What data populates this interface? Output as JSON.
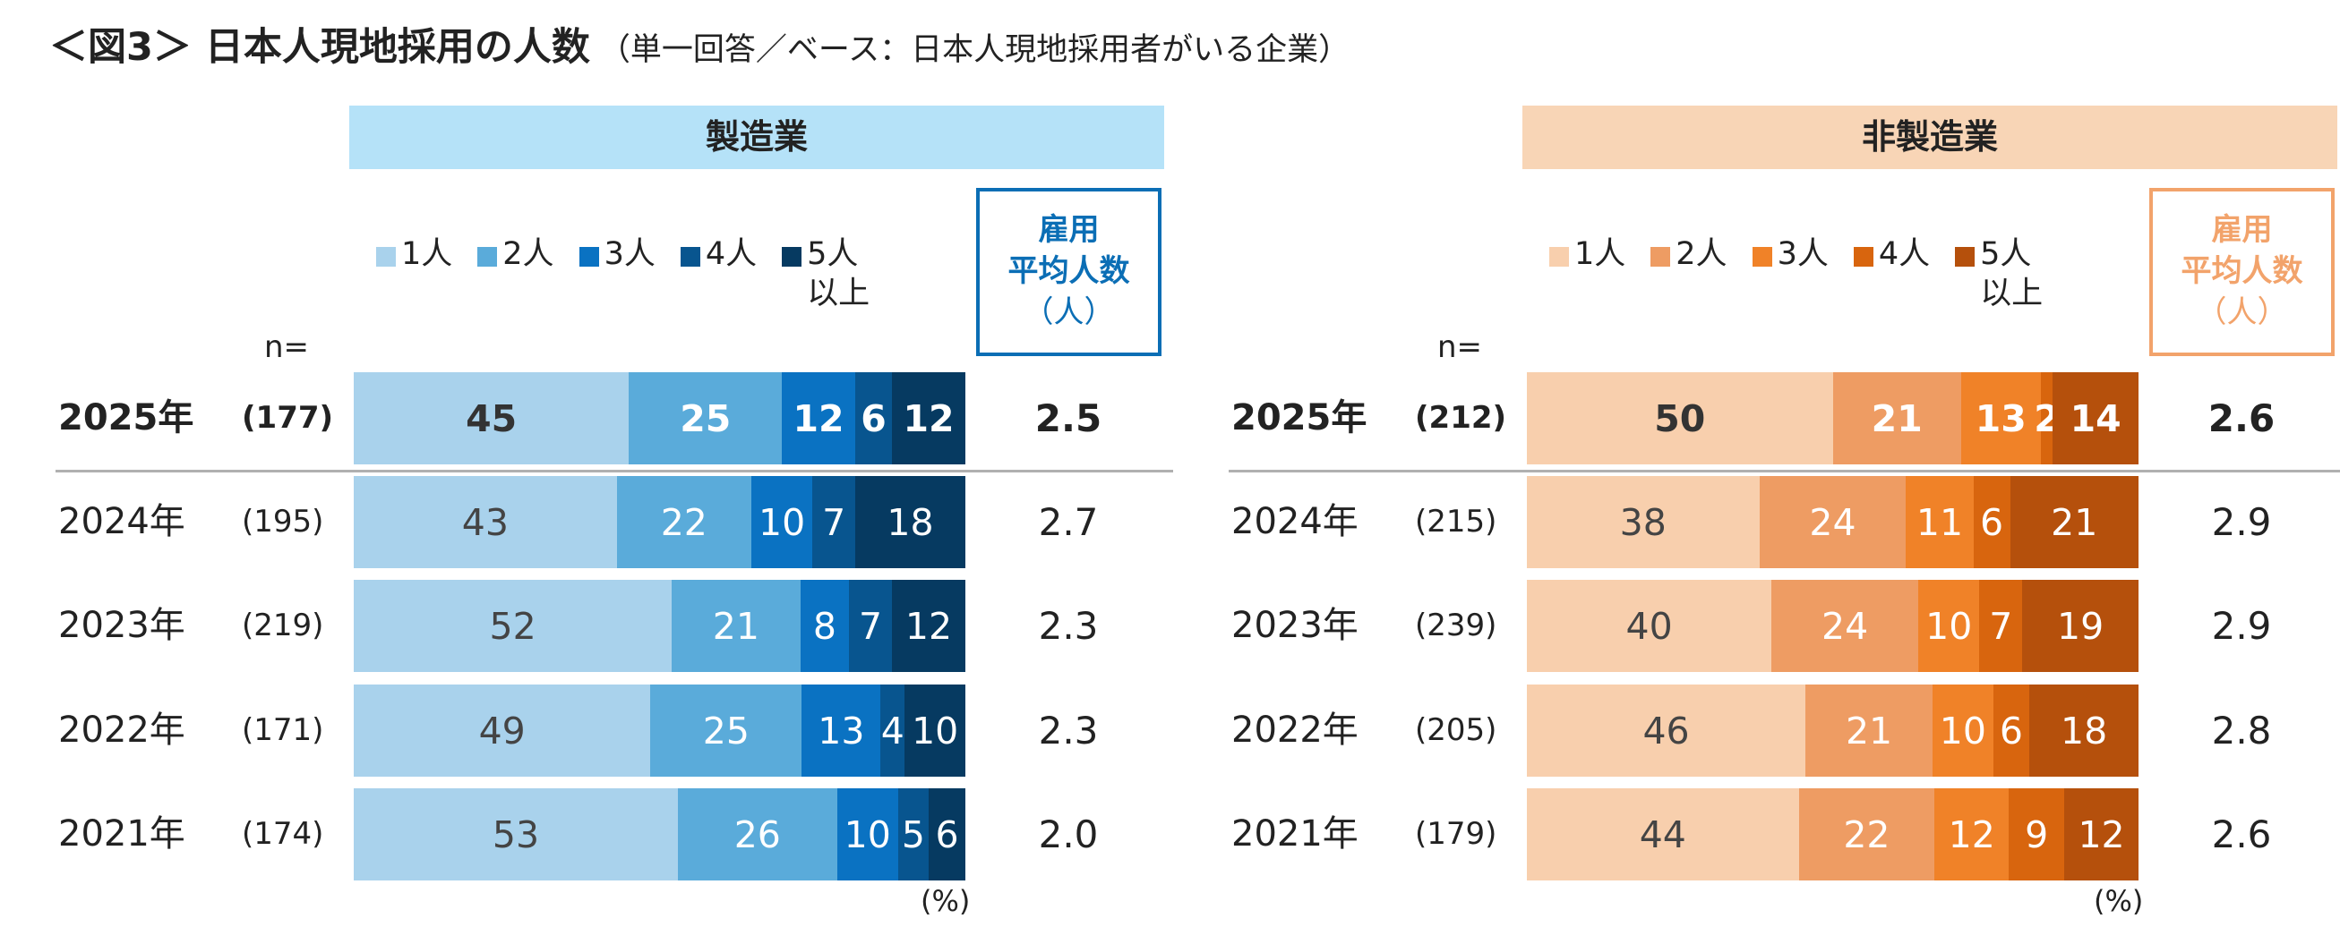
{
  "title": {
    "main": "＜図3＞ 日本人現地採用の人数",
    "sub": "（単一回答／ベース：日本人現地採用者がいる企業）"
  },
  "n_label": "n=",
  "unit_label": "(%)",
  "avg_header": {
    "line1": "雇用",
    "line2": "平均人数",
    "line3": "（人）"
  },
  "legend_labels": [
    "1人",
    "2人",
    "3人",
    "4人",
    "5人\n以上"
  ],
  "chart_data": [
    {
      "type": "bar",
      "orientation": "horizontal",
      "stacked": true,
      "title": "製造業",
      "categories": [
        "2025年",
        "2024年",
        "2023年",
        "2022年",
        "2021年"
      ],
      "n": [
        "(177)",
        "(195)",
        "(219)",
        "(171)",
        "(174)"
      ],
      "series": [
        {
          "name": "1人",
          "color": "#A9D2EC",
          "values": [
            45,
            43,
            52,
            49,
            53
          ]
        },
        {
          "name": "2人",
          "color": "#5AABDA",
          "values": [
            25,
            22,
            21,
            25,
            26
          ]
        },
        {
          "name": "3人",
          "color": "#0A72C2",
          "values": [
            12,
            10,
            8,
            13,
            10
          ]
        },
        {
          "name": "4人",
          "color": "#08558F",
          "values": [
            6,
            7,
            7,
            4,
            5
          ]
        },
        {
          "name": "5人以上",
          "color": "#063A61",
          "values": [
            12,
            18,
            12,
            10,
            6
          ]
        }
      ],
      "avg_employment": [
        "2.5",
        "2.7",
        "2.3",
        "2.3",
        "2.0"
      ],
      "header_color": "#B5E2F8",
      "accent_color": "#0B6EB5",
      "xlim": [
        0,
        100
      ]
    },
    {
      "type": "bar",
      "orientation": "horizontal",
      "stacked": true,
      "title": "非製造業",
      "categories": [
        "2025年",
        "2024年",
        "2023年",
        "2022年",
        "2021年"
      ],
      "n": [
        "(212)",
        "(215)",
        "(239)",
        "(205)",
        "(179)"
      ],
      "series": [
        {
          "name": "1人",
          "color": "#F8CFAD",
          "values": [
            50,
            38,
            40,
            46,
            44
          ]
        },
        {
          "name": "2人",
          "color": "#EE9C63",
          "values": [
            21,
            24,
            24,
            21,
            22
          ]
        },
        {
          "name": "3人",
          "color": "#F08228",
          "values": [
            13,
            11,
            10,
            10,
            12
          ]
        },
        {
          "name": "4人",
          "color": "#D8650E",
          "values": [
            2,
            6,
            7,
            6,
            9
          ]
        },
        {
          "name": "5人以上",
          "color": "#B5500C",
          "values": [
            14,
            21,
            19,
            18,
            12
          ]
        }
      ],
      "avg_employment": [
        "2.6",
        "2.9",
        "2.9",
        "2.8",
        "2.6"
      ],
      "header_color": "#F8D5B6",
      "accent_color": "#F2A36B",
      "xlim": [
        0,
        100
      ]
    }
  ]
}
